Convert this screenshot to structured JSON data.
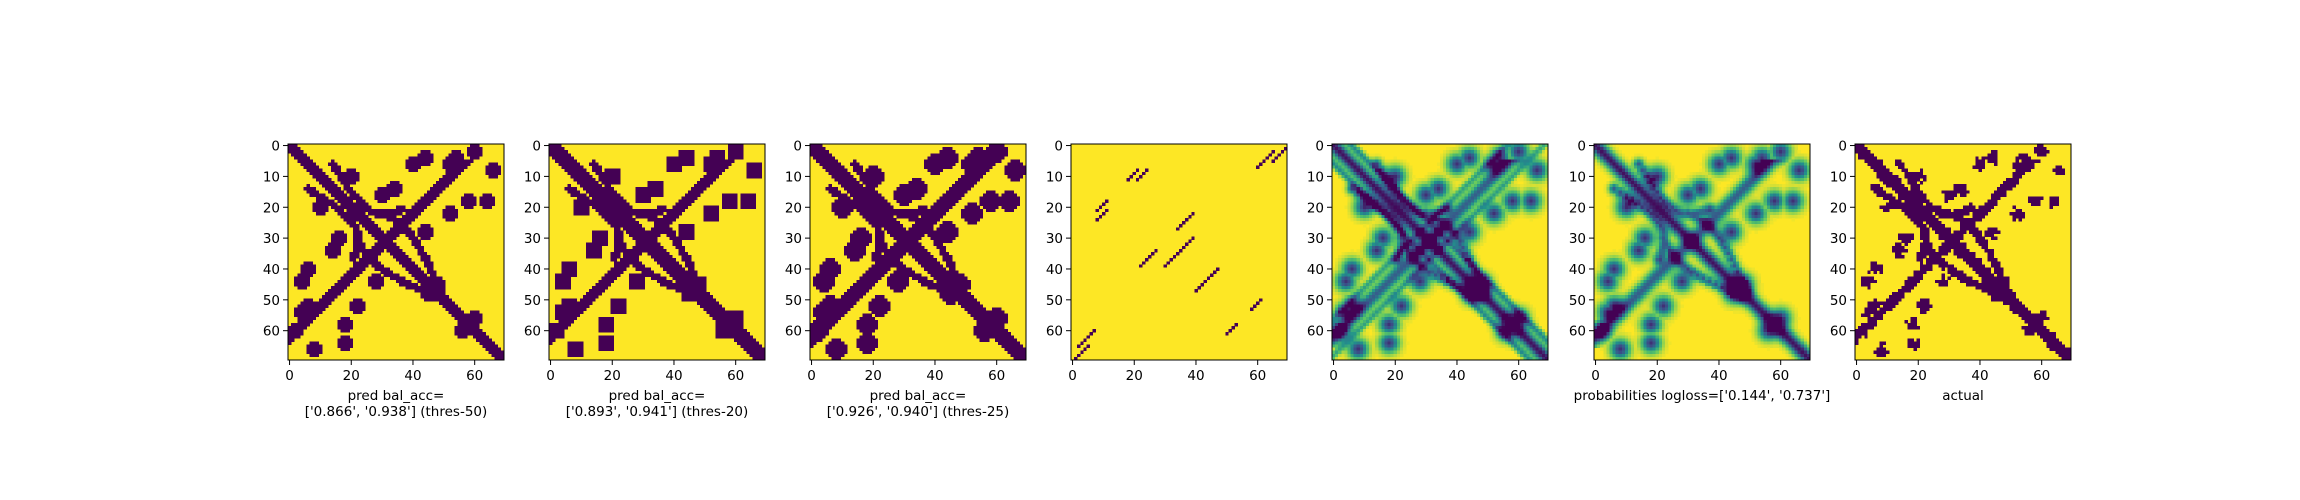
{
  "colors": {
    "low": "#440154",
    "mid1": "#3b528b",
    "mid2": "#21918c",
    "mid3": "#5ec962",
    "high": "#fde725",
    "axis": "#000000"
  },
  "chart_data": [
    {
      "type": "heatmap",
      "grid_size": 70,
      "xlim": [
        0,
        69
      ],
      "ylim": [
        69,
        0
      ],
      "xticks": [
        0,
        20,
        40,
        60
      ],
      "yticks": [
        0,
        10,
        20,
        30,
        40,
        50,
        60
      ],
      "xlabel_lines": [
        "pred bal_acc=",
        "['0.866', '0.938'] (thres-50)"
      ],
      "pattern": {
        "kind": "binary",
        "diag_w": 1.8,
        "anti_w": 1.6,
        "blob_r": 2.4
      }
    },
    {
      "type": "heatmap",
      "grid_size": 70,
      "xlim": [
        0,
        69
      ],
      "ylim": [
        69,
        0
      ],
      "xticks": [
        0,
        20,
        40,
        60
      ],
      "yticks": [
        0,
        10,
        20,
        30,
        40,
        50,
        60
      ],
      "xlabel_lines": [
        "pred bal_acc=",
        "['0.893', '0.941'] (thres-20)"
      ],
      "pattern": {
        "kind": "binary",
        "diag_w": 2.2,
        "anti_w": 2.0,
        "blob_r": 3.0
      }
    },
    {
      "type": "heatmap",
      "grid_size": 70,
      "xlim": [
        0,
        69
      ],
      "ylim": [
        69,
        0
      ],
      "xticks": [
        0,
        20,
        40,
        60
      ],
      "yticks": [
        0,
        10,
        20,
        30,
        40,
        50,
        60
      ],
      "xlabel_lines": [
        "pred bal_acc=",
        "['0.926', '0.940'] (thres-25)"
      ],
      "pattern": {
        "kind": "binary",
        "diag_w": 2.6,
        "anti_w": 2.3,
        "blob_r": 3.3
      }
    },
    {
      "type": "heatmap",
      "grid_size": 70,
      "xlim": [
        0,
        69
      ],
      "ylim": [
        69,
        0
      ],
      "xticks": [
        0,
        20,
        40,
        60
      ],
      "yticks": [
        0,
        10,
        20,
        30,
        40,
        50,
        60
      ],
      "xlabel_lines": [],
      "pattern": {
        "kind": "sparse"
      }
    },
    {
      "type": "heatmap",
      "grid_size": 70,
      "xlim": [
        0,
        69
      ],
      "ylim": [
        69,
        0
      ],
      "xticks": [
        0,
        20,
        40,
        60
      ],
      "yticks": [
        0,
        10,
        20,
        30,
        40,
        50,
        60
      ],
      "xlabel_lines": [],
      "pattern": {
        "kind": "continuous",
        "variant": "lattice"
      }
    },
    {
      "type": "heatmap",
      "grid_size": 70,
      "xlim": [
        0,
        69
      ],
      "ylim": [
        69,
        0
      ],
      "xticks": [
        0,
        20,
        40,
        60
      ],
      "yticks": [
        0,
        10,
        20,
        30,
        40,
        50,
        60
      ],
      "xlabel_lines": [
        "probabilities logloss=['0.144', '0.737']"
      ],
      "pattern": {
        "kind": "continuous",
        "variant": "smooth"
      }
    },
    {
      "type": "heatmap",
      "grid_size": 70,
      "xlim": [
        0,
        69
      ],
      "ylim": [
        69,
        0
      ],
      "xticks": [
        0,
        20,
        40,
        60
      ],
      "yticks": [
        0,
        10,
        20,
        30,
        40,
        50,
        60
      ],
      "xlabel_lines": [
        "actual"
      ],
      "pattern": {
        "kind": "binary",
        "diag_w": 1.9,
        "anti_w": 1.5,
        "blob_r": 2.0,
        "noisy": true
      }
    }
  ]
}
